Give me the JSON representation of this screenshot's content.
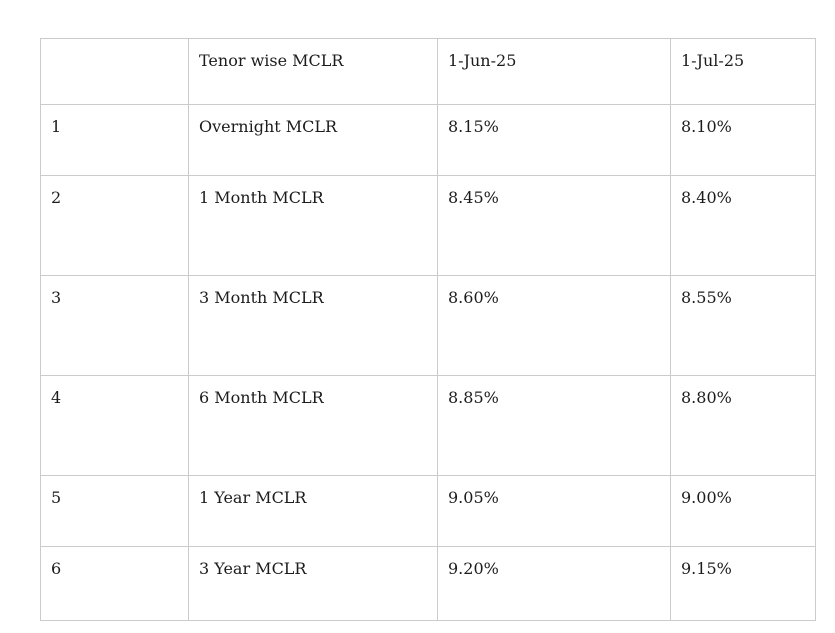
{
  "table": {
    "columns": [
      {
        "label": ""
      },
      {
        "label": "Tenor wise MCLR"
      },
      {
        "label": "1-Jun-25"
      },
      {
        "label": "1-Jul-25"
      }
    ],
    "rows": [
      {
        "sno": "1",
        "tenor": "Overnight MCLR",
        "jun": "8.15%",
        "jul": "8.10%"
      },
      {
        "sno": "2",
        "tenor": "1 Month MCLR",
        "jun": "8.45%",
        "jul": "8.40%"
      },
      {
        "sno": "3",
        "tenor": "3 Month MCLR",
        "jun": "8.60%",
        "jul": "8.55%"
      },
      {
        "sno": "4",
        "tenor": "6 Month MCLR",
        "jun": "8.85%",
        "jul": "8.80%"
      },
      {
        "sno": "5",
        "tenor": "1 Year MCLR",
        "jun": "9.05%",
        "jul": "9.00%"
      },
      {
        "sno": "6",
        "tenor": "3 Year MCLR",
        "jun": "9.20%",
        "jul": "9.15%"
      }
    ],
    "colors": {
      "border": "#cbcbcb",
      "text": "#1c1c1c",
      "background": "#ffffff"
    }
  }
}
